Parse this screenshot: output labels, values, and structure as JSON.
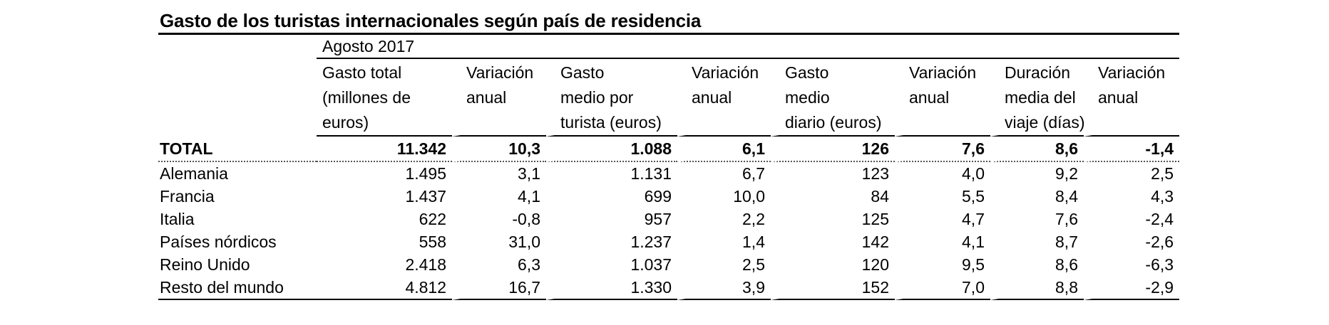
{
  "title": "Gasto de los turistas internacionales según país de residencia",
  "period": "Agosto 2017",
  "headers": [
    [
      "Gasto total",
      "(millones de",
      "euros)"
    ],
    [
      "Variación",
      "anual"
    ],
    [
      "Gasto",
      "medio por",
      "turista (euros)"
    ],
    [
      "Variación",
      "anual"
    ],
    [
      "Gasto",
      "medio",
      "diario (euros)"
    ],
    [
      "Variación",
      "anual"
    ],
    [
      "Duración",
      "media del",
      "viaje (días)"
    ],
    [
      "Variación",
      "anual"
    ]
  ],
  "total": {
    "label": "TOTAL",
    "values": [
      "11.342",
      "10,3",
      "1.088",
      "6,1",
      "126",
      "7,6",
      "8,6",
      "-1,4"
    ]
  },
  "rows": [
    {
      "label": "Alemania",
      "values": [
        "1.495",
        "3,1",
        "1.131",
        "6,7",
        "123",
        "4,0",
        "9,2",
        "2,5"
      ]
    },
    {
      "label": "Francia",
      "values": [
        "1.437",
        "4,1",
        "699",
        "10,0",
        "84",
        "5,5",
        "8,4",
        "4,3"
      ]
    },
    {
      "label": "Italia",
      "values": [
        "622",
        "-0,8",
        "957",
        "2,2",
        "125",
        "4,7",
        "7,6",
        "-2,4"
      ]
    },
    {
      "label": "Países nórdicos",
      "values": [
        "558",
        "31,0",
        "1.237",
        "1,4",
        "142",
        "4,1",
        "8,7",
        "-2,6"
      ]
    },
    {
      "label": "Reino Unido",
      "values": [
        "2.418",
        "6,3",
        "1.037",
        "2,5",
        "120",
        "9,5",
        "8,6",
        "-6,3"
      ]
    },
    {
      "label": "Resto del mundo",
      "values": [
        "4.812",
        "16,7",
        "1.330",
        "3,9",
        "152",
        "7,0",
        "8,8",
        "-2,9"
      ]
    }
  ]
}
